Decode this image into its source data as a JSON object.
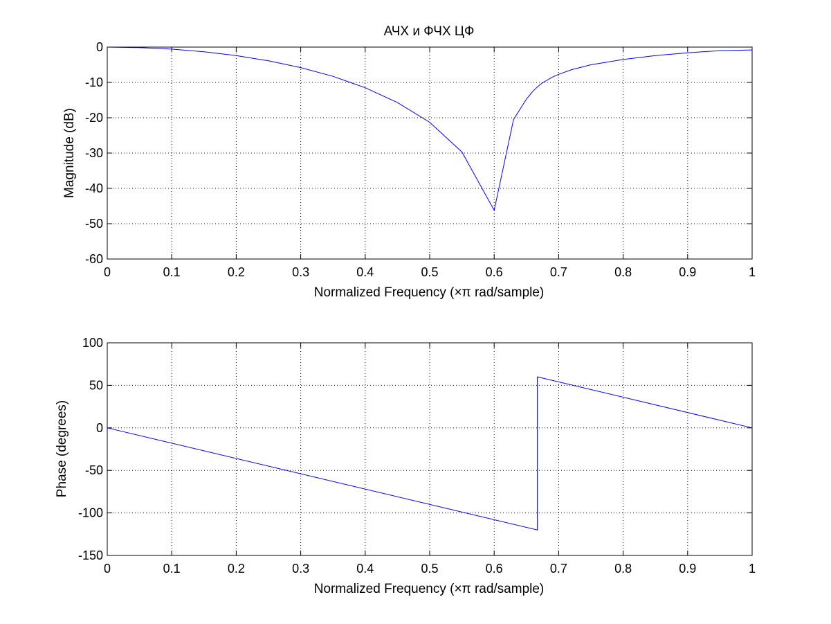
{
  "chart_data": [
    {
      "type": "line",
      "title": "АЧХ и ФЧХ ЦФ",
      "xlabel": "Normalized Frequency  (×π rad/sample)",
      "ylabel": "Magnitude (dB)",
      "xlim": [
        0,
        1
      ],
      "ylim": [
        -60,
        0
      ],
      "xticks": [
        "0",
        "0.1",
        "0.2",
        "0.3",
        "0.4",
        "0.5",
        "0.6",
        "0.7",
        "0.8",
        "0.9",
        "1"
      ],
      "yticks": [
        "0",
        "-10",
        "-20",
        "-30",
        "-40",
        "-50",
        "-60"
      ],
      "grid": true,
      "line_color": "#0000ff",
      "series": [
        {
          "x": [
            0,
            0.05,
            0.1,
            0.15,
            0.2,
            0.25,
            0.3,
            0.35,
            0.4,
            0.45,
            0.5,
            0.55,
            0.6,
            0.63,
            0.65,
            0.66,
            0.665,
            0.667,
            0.67,
            0.675,
            0.69,
            0.7,
            0.72,
            0.75,
            0.8,
            0.85,
            0.9,
            0.95,
            1.0
          ],
          "y": [
            0.0,
            -0.14,
            -0.57,
            -1.32,
            -2.41,
            -3.88,
            -5.81,
            -8.28,
            -11.5,
            -15.7,
            -21.3,
            -29.7,
            -46.2,
            -20.5,
            -14.7,
            -12.5,
            -11.6,
            -11.3,
            -10.8,
            -10.1,
            -8.5,
            -7.7,
            -6.4,
            -5.0,
            -3.5,
            -2.4,
            -1.6,
            -1.0,
            -0.8
          ]
        }
      ]
    },
    {
      "type": "line",
      "title": "",
      "xlabel": "Normalized Frequency  (×π rad/sample)",
      "ylabel": "Phase (degrees)",
      "xlim": [
        0,
        1
      ],
      "ylim": [
        -150,
        100
      ],
      "xticks": [
        "0",
        "0.1",
        "0.2",
        "0.3",
        "0.4",
        "0.5",
        "0.6",
        "0.7",
        "0.8",
        "0.9",
        "1"
      ],
      "yticks": [
        "100",
        "50",
        "0",
        "-50",
        "-100",
        "-150"
      ],
      "grid": true,
      "line_color": "#0000ff",
      "series": [
        {
          "x": [
            0,
            0.667,
            0.667,
            1.0
          ],
          "y": [
            0,
            -120,
            60,
            0
          ]
        }
      ]
    }
  ]
}
